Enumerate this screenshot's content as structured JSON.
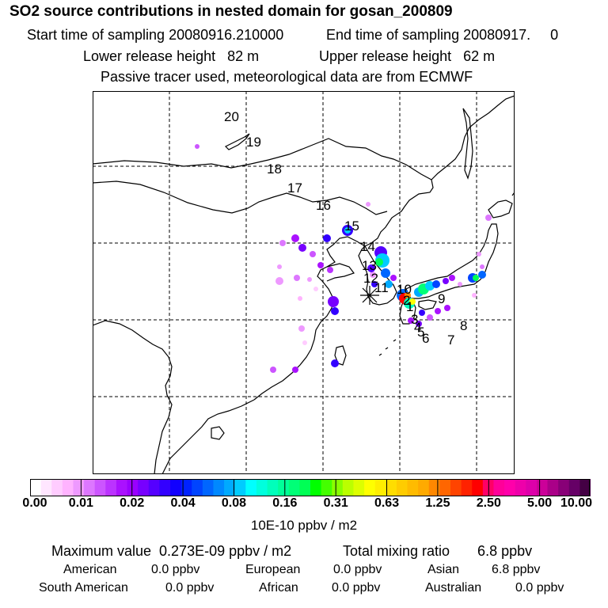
{
  "header": {
    "title": "SO2 source contributions in nested domain for gosan_200809",
    "start_label": "Start time of sampling 20080916.210000",
    "end_label": "End time of sampling 20080917.     0",
    "lower_label": "Lower release height   82 m",
    "upper_label": "Upper release height   62 m",
    "note": "Passive tracer used, meteorological data are from ECMWF"
  },
  "map": {
    "receptor_marker": "asterisk",
    "source_numbers": [
      "1",
      "2",
      "3",
      "4",
      "5",
      "6",
      "7",
      "8",
      "9",
      "10",
      "11",
      "12",
      "13",
      "14",
      "15",
      "16",
      "17",
      "18",
      "19",
      "20"
    ]
  },
  "colorbar": {
    "ticks": [
      "0.00",
      "0.01",
      "0.02",
      "0.04",
      "0.08",
      "0.16",
      "0.31",
      "0.63",
      "1.25",
      "2.50",
      "5.00",
      "10.00"
    ],
    "units": "10E-10 ppbv / m2",
    "colors": [
      "#ffffff",
      "#ffe6ff",
      "#ffccff",
      "#ffb3ff",
      "#ee99ff",
      "#dd77ff",
      "#cc55ff",
      "#bb33ff",
      "#aa11ff",
      "#9900ff",
      "#7700ff",
      "#5500ff",
      "#3300ff",
      "#1100ff",
      "#0022ff",
      "#0044ff",
      "#0066ff",
      "#0088ff",
      "#00aaff",
      "#00ccff",
      "#00ffff",
      "#00ffdd",
      "#00ffbb",
      "#00ff99",
      "#00ff77",
      "#00ff55",
      "#00ff00",
      "#44ff00",
      "#88ff00",
      "#bbff00",
      "#ddff00",
      "#ffff00",
      "#ffee00",
      "#ffdd00",
      "#ffcc00",
      "#ffbb00",
      "#ffaa00",
      "#ff8800",
      "#ff6600",
      "#ff4400",
      "#ff2200",
      "#ff0000",
      "#ff0066",
      "#ff0099",
      "#ff00aa",
      "#ee00aa",
      "#dd00aa",
      "#cc0099",
      "#aa0088",
      "#880077",
      "#660066",
      "#440044"
    ]
  },
  "stats": {
    "max_label": "Maximum value  0.273E-09 ppbv / m2",
    "total_label": "Total mixing ratio       6.8 ppbv",
    "american": {
      "label": "American",
      "value": "0.0 ppbv"
    },
    "european": {
      "label": "European",
      "value": "0.0 ppbv"
    },
    "asian": {
      "label": "Asian",
      "value": "6.8 ppbv"
    },
    "south_american": {
      "label": "South American",
      "value": "0.0 ppbv"
    },
    "african": {
      "label": "African",
      "value": "0.0 ppbv"
    },
    "australian": {
      "label": "Australian",
      "value": "0.0 ppbv"
    }
  }
}
